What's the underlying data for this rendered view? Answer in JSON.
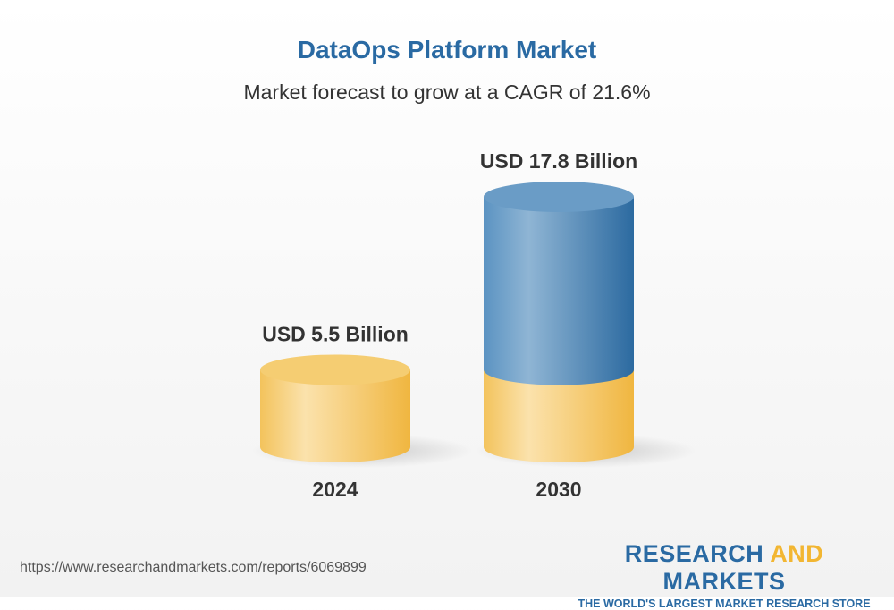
{
  "title": "DataOps Platform Market",
  "subtitle": "Market forecast to grow at a CAGR of 21.6%",
  "chart_data": {
    "type": "bar",
    "style": "3d-cylinder",
    "categories": [
      "2024",
      "2030"
    ],
    "values": [
      5.5,
      17.8
    ],
    "data_labels": [
      "USD 5.5 Billion",
      "USD 17.8 Billion"
    ],
    "unit": "USD Billion",
    "colors": {
      "base": "#f2c25a",
      "growth": "#3d7db3"
    },
    "grid": false
  },
  "footer": {
    "url": "https://www.researchandmarkets.com/reports/6069899",
    "logo_part1": "RESEARCH ",
    "logo_part2": "AND",
    "logo_part3": " MARKETS",
    "tagline": "THE WORLD'S LARGEST MARKET RESEARCH STORE"
  }
}
